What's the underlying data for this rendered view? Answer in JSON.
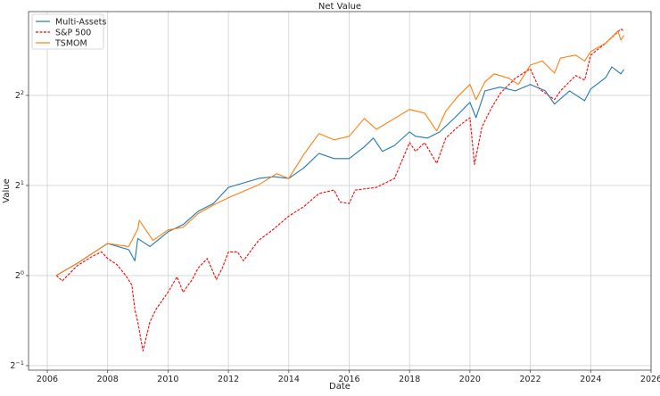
{
  "chart_data": {
    "type": "line",
    "title": "Net Value",
    "xlabel": "Date",
    "ylabel": "Value",
    "xscale": "linear",
    "yscale": "log2",
    "xlim": [
      2005.38,
      2026.0
    ],
    "ylim": [
      0.483,
      7.62
    ],
    "grid": true,
    "legend_position": "top-left",
    "x_ticks": [
      2006,
      2008,
      2010,
      2012,
      2014,
      2016,
      2018,
      2020,
      2022,
      2024,
      2026
    ],
    "x_tick_labels": [
      "2006",
      "2008",
      "2010",
      "2012",
      "2014",
      "2016",
      "2018",
      "2020",
      "2022",
      "2024",
      "2026"
    ],
    "y_ticks": [
      0.5,
      1,
      2,
      4
    ],
    "y_tick_labels": [
      {
        "base": "2",
        "exp": "−1"
      },
      {
        "base": "2",
        "exp": "0"
      },
      {
        "base": "2",
        "exp": "1"
      },
      {
        "base": "2",
        "exp": "2"
      }
    ],
    "series": [
      {
        "name": "Multi-Assets",
        "color": "#1f77b4",
        "style": "solid",
        "points": [
          [
            2006.3,
            1.0
          ],
          [
            2007,
            1.1
          ],
          [
            2008,
            1.28
          ],
          [
            2008.7,
            1.22
          ],
          [
            2008.9,
            1.12
          ],
          [
            2009.0,
            1.33
          ],
          [
            2009.4,
            1.25
          ],
          [
            2010,
            1.4
          ],
          [
            2010.5,
            1.48
          ],
          [
            2011,
            1.64
          ],
          [
            2011.5,
            1.74
          ],
          [
            2012,
            1.97
          ],
          [
            2013,
            2.11
          ],
          [
            2013.5,
            2.14
          ],
          [
            2014,
            2.11
          ],
          [
            2014.5,
            2.29
          ],
          [
            2015,
            2.56
          ],
          [
            2015.5,
            2.46
          ],
          [
            2016,
            2.46
          ],
          [
            2016.5,
            2.69
          ],
          [
            2016.8,
            2.88
          ],
          [
            2017.1,
            2.6
          ],
          [
            2017.5,
            2.72
          ],
          [
            2018,
            3.02
          ],
          [
            2018.2,
            2.92
          ],
          [
            2018.6,
            2.88
          ],
          [
            2019,
            3.02
          ],
          [
            2019.5,
            3.37
          ],
          [
            2020,
            3.79
          ],
          [
            2020.2,
            3.37
          ],
          [
            2020.5,
            4.14
          ],
          [
            2021,
            4.26
          ],
          [
            2021.5,
            4.14
          ],
          [
            2022,
            4.35
          ],
          [
            2022.5,
            4.14
          ],
          [
            2022.8,
            3.74
          ],
          [
            2023.3,
            4.14
          ],
          [
            2023.8,
            3.84
          ],
          [
            2024,
            4.2
          ],
          [
            2024.5,
            4.59
          ],
          [
            2024.7,
            4.98
          ],
          [
            2025,
            4.72
          ],
          [
            2025.1,
            4.88
          ]
        ]
      },
      {
        "name": "S&P 500",
        "color": "#ff0000",
        "style": "dashed",
        "points": [
          [
            2006.3,
            1.0
          ],
          [
            2006.5,
            0.96
          ],
          [
            2007,
            1.08
          ],
          [
            2007.5,
            1.16
          ],
          [
            2007.8,
            1.2
          ],
          [
            2008,
            1.14
          ],
          [
            2008.3,
            1.09
          ],
          [
            2008.6,
            1.0
          ],
          [
            2008.8,
            0.93
          ],
          [
            2008.9,
            0.77
          ],
          [
            2009.0,
            0.7
          ],
          [
            2009.17,
            0.56
          ],
          [
            2009.4,
            0.7
          ],
          [
            2009.6,
            0.77
          ],
          [
            2010,
            0.88
          ],
          [
            2010.3,
            0.99
          ],
          [
            2010.5,
            0.88
          ],
          [
            2010.8,
            0.97
          ],
          [
            2011,
            1.06
          ],
          [
            2011.3,
            1.14
          ],
          [
            2011.6,
            0.97
          ],
          [
            2011.8,
            1.06
          ],
          [
            2012,
            1.2
          ],
          [
            2012.3,
            1.2
          ],
          [
            2012.5,
            1.12
          ],
          [
            2013,
            1.31
          ],
          [
            2013.5,
            1.43
          ],
          [
            2014,
            1.58
          ],
          [
            2014.5,
            1.7
          ],
          [
            2015,
            1.88
          ],
          [
            2015.5,
            1.93
          ],
          [
            2015.7,
            1.76
          ],
          [
            2016,
            1.74
          ],
          [
            2016.2,
            1.93
          ],
          [
            2016.9,
            1.97
          ],
          [
            2017.5,
            2.11
          ],
          [
            2018,
            2.78
          ],
          [
            2018.2,
            2.6
          ],
          [
            2018.5,
            2.78
          ],
          [
            2018.9,
            2.37
          ],
          [
            2019.2,
            2.88
          ],
          [
            2019.6,
            3.14
          ],
          [
            2020,
            3.37
          ],
          [
            2020.15,
            2.35
          ],
          [
            2020.4,
            3.14
          ],
          [
            2020.7,
            3.61
          ],
          [
            2021,
            4.06
          ],
          [
            2021.5,
            4.56
          ],
          [
            2022,
            4.91
          ],
          [
            2022.3,
            4.2
          ],
          [
            2022.8,
            3.87
          ],
          [
            2023,
            4.14
          ],
          [
            2023.5,
            4.66
          ],
          [
            2023.8,
            4.5
          ],
          [
            2024,
            5.45
          ],
          [
            2024.5,
            5.98
          ],
          [
            2025,
            6.66
          ],
          [
            2025.1,
            6.56
          ]
        ]
      },
      {
        "name": "TSMOM",
        "color": "#ff7f0e",
        "style": "solid",
        "points": [
          [
            2006.3,
            1.0
          ],
          [
            2007,
            1.1
          ],
          [
            2008,
            1.28
          ],
          [
            2008.7,
            1.25
          ],
          [
            2009.0,
            1.43
          ],
          [
            2009.05,
            1.53
          ],
          [
            2009.5,
            1.31
          ],
          [
            2010,
            1.42
          ],
          [
            2010.5,
            1.45
          ],
          [
            2011,
            1.61
          ],
          [
            2011.5,
            1.72
          ],
          [
            2012,
            1.82
          ],
          [
            2013,
            2.01
          ],
          [
            2013.6,
            2.19
          ],
          [
            2014,
            2.11
          ],
          [
            2014.5,
            2.54
          ],
          [
            2015,
            2.98
          ],
          [
            2015.5,
            2.84
          ],
          [
            2016,
            2.92
          ],
          [
            2016.5,
            3.35
          ],
          [
            2016.9,
            3.08
          ],
          [
            2017.5,
            3.35
          ],
          [
            2018,
            3.59
          ],
          [
            2018.5,
            3.49
          ],
          [
            2018.9,
            3.04
          ],
          [
            2019.2,
            3.54
          ],
          [
            2019.6,
            3.97
          ],
          [
            2020,
            4.35
          ],
          [
            2020.2,
            3.87
          ],
          [
            2020.5,
            4.44
          ],
          [
            2020.8,
            4.72
          ],
          [
            2021.3,
            4.56
          ],
          [
            2021.6,
            4.35
          ],
          [
            2022,
            5.05
          ],
          [
            2022.4,
            5.21
          ],
          [
            2022.8,
            4.75
          ],
          [
            2023,
            5.33
          ],
          [
            2023.5,
            5.45
          ],
          [
            2023.8,
            5.21
          ],
          [
            2024,
            5.6
          ],
          [
            2024.5,
            5.98
          ],
          [
            2024.9,
            6.56
          ],
          [
            2025,
            6.12
          ],
          [
            2025.1,
            6.34
          ]
        ]
      }
    ]
  }
}
